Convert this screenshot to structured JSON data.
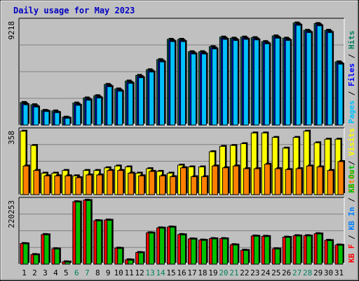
{
  "chart_data": {
    "type": "bar",
    "title": "Daily usage for May 2023",
    "categories": [
      "1",
      "2",
      "3",
      "4",
      "5",
      "6",
      "7",
      "8",
      "9",
      "10",
      "11",
      "12",
      "13",
      "14",
      "15",
      "16",
      "17",
      "18",
      "19",
      "20",
      "21",
      "22",
      "23",
      "24",
      "25",
      "26",
      "27",
      "28",
      "29",
      "30",
      "31"
    ],
    "weekend_days": [
      "6",
      "7",
      "13",
      "14",
      "20",
      "21",
      "27",
      "28"
    ],
    "panels": [
      {
        "id": "hits",
        "ymax_label": "9218",
        "ymax": 9218,
        "series": [
          {
            "name": "Hits",
            "color": "#00805c",
            "values": [
              2000,
              1800,
              1300,
              1250,
              700,
              1950,
              2400,
              2600,
              3600,
              3200,
              3900,
              4400,
              4900,
              5800,
              7600,
              7600,
              6500,
              6500,
              6950,
              7800,
              7700,
              7800,
              7750,
              7400,
              7900,
              7700,
              9050,
              8400,
              9000,
              8400,
              5600
            ]
          },
          {
            "name": "Files",
            "color": "#0000ff",
            "values": [
              1900,
              1700,
              1250,
              1150,
              650,
              1850,
              2300,
              2500,
              3500,
              3100,
              3800,
              4300,
              4800,
              5700,
              7500,
              7500,
              6400,
              6400,
              6850,
              7700,
              7600,
              7700,
              7650,
              7300,
              7800,
              7600,
              8950,
              8300,
              8900,
              8300,
              5500
            ]
          },
          {
            "name": "Pages",
            "color": "#00c0ff",
            "values": [
              1800,
              1600,
              1200,
              1100,
              600,
              1750,
              2200,
              2400,
              3400,
              3000,
              3700,
              4200,
              4700,
              5600,
              7400,
              7400,
              6300,
              6300,
              6750,
              7600,
              7500,
              7600,
              7550,
              7200,
              7700,
              7500,
              8850,
              8200,
              8800,
              8200,
              5400
            ]
          }
        ]
      },
      {
        "id": "visits",
        "ymax_label": "358",
        "ymax": 358,
        "series": [
          {
            "name": "Visits",
            "color": "#ffff00",
            "values": [
              355,
              275,
              120,
              120,
              135,
              105,
              135,
              135,
              150,
              160,
              155,
              120,
              145,
              130,
              120,
              165,
              155,
              155,
              240,
              270,
              275,
              285,
              345,
              345,
              320,
              260,
              320,
              355,
              290,
              310,
              310
            ]
          },
          {
            "name": "Sites",
            "color": "#ff8000",
            "values": [
              160,
              135,
              105,
              105,
              105,
              95,
              110,
              110,
              135,
              135,
              120,
              105,
              130,
              105,
              100,
              150,
              100,
              100,
              160,
              150,
              160,
              145,
              145,
              170,
              145,
              140,
              145,
              160,
              155,
              135,
              185
            ]
          }
        ]
      },
      {
        "id": "kbytes",
        "ymax_label": "220253",
        "ymax": 220253,
        "series": [
          {
            "name": "KB F",
            "color": "#ff0000",
            "values": [
              71000,
              33000,
              102000,
              53000,
              8000,
              215000,
              220253,
              150000,
              152000,
              55000,
              15000,
              40000,
              108000,
              125000,
              128000,
              102000,
              87000,
              83000,
              88000,
              88000,
              67000,
              48000,
              97000,
              96000,
              53000,
              93000,
              98000,
              98000,
              105000,
              82000,
              66000
            ]
          },
          {
            "name": "KB In",
            "color": "#0080ff",
            "values": [
              0,
              0,
              0,
              0,
              0,
              0,
              0,
              0,
              0,
              0,
              0,
              0,
              0,
              0,
              0,
              0,
              0,
              0,
              0,
              0,
              0,
              0,
              0,
              0,
              0,
              0,
              0,
              0,
              0,
              0,
              0
            ]
          },
          {
            "name": "KB Out",
            "color": "#00c000",
            "values": [
              70000,
              32000,
              101000,
              52000,
              7000,
              214000,
              219000,
              149000,
              151000,
              54000,
              14000,
              39000,
              107000,
              124000,
              127000,
              101000,
              86000,
              82000,
              87000,
              87000,
              66000,
              47000,
              96000,
              95000,
              52000,
              92000,
              97000,
              97000,
              104000,
              81000,
              65000
            ]
          }
        ]
      }
    ]
  },
  "labels": {
    "hits_right": [
      {
        "text": "Pages",
        "color": "#00c0ff"
      },
      {
        "text": " / ",
        "color": "#000000"
      },
      {
        "text": "Files",
        "color": "#0000ff"
      },
      {
        "text": " / ",
        "color": "#000000"
      },
      {
        "text": "Hits",
        "color": "#00805c"
      }
    ],
    "visits_right": [
      {
        "text": "Sites",
        "color": "#ff8000"
      },
      {
        "text": " / ",
        "color": "#000000"
      },
      {
        "text": "Visits",
        "color": "#ffff00"
      }
    ],
    "kbytes_right": [
      {
        "text": "KB F",
        "color": "#ff0000"
      },
      {
        "text": " / ",
        "color": "#000000"
      },
      {
        "text": "KB In",
        "color": "#0080ff"
      },
      {
        "text": " / ",
        "color": "#000000"
      },
      {
        "text": "KB Out",
        "color": "#00c000"
      }
    ]
  },
  "colors": {
    "background": "#c0c0c0",
    "grid": "#808080",
    "title": "#0000c0",
    "weekday_label": "#000000",
    "weekend_label": "#00805c"
  }
}
